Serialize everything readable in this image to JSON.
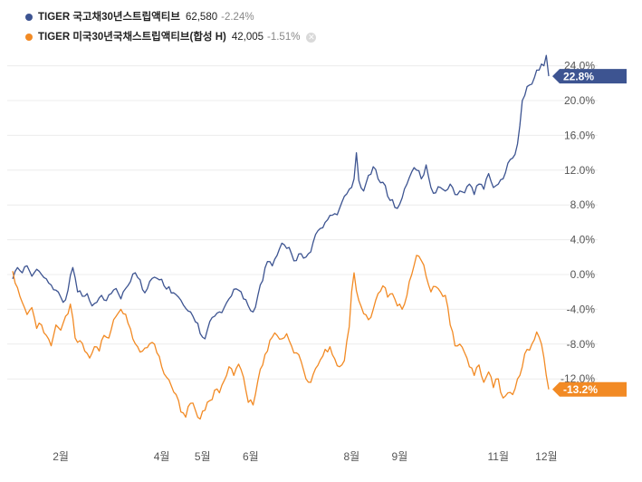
{
  "legend": {
    "items": [
      {
        "name": "TIGER 국고채30년스트립액티브",
        "price": "62,580",
        "change": "-2.24%",
        "color": "#3d5491"
      },
      {
        "name": "TIGER 미국30년국채스트립액티브(합성 H)",
        "price": "42,005",
        "change": "-1.51%",
        "color": "#f28a24",
        "close_icon": "close-icon"
      }
    ]
  },
  "chart_data": {
    "type": "line",
    "title": "",
    "xlabel": "",
    "ylabel": "",
    "x_ticks": [
      {
        "label": "2월",
        "idx": 20
      },
      {
        "label": "4월",
        "idx": 62
      },
      {
        "label": "5월",
        "idx": 79
      },
      {
        "label": "6월",
        "idx": 99
      },
      {
        "label": "8월",
        "idx": 141
      },
      {
        "label": "9월",
        "idx": 161
      },
      {
        "label": "11월",
        "idx": 202
      },
      {
        "label": "12월",
        "idx": 222
      }
    ],
    "y_ticks": [
      "24.0%",
      "20.0%",
      "16.0%",
      "12.0%",
      "8.0%",
      "4.0%",
      "0.0%",
      "-4.0%",
      "-8.0%",
      "-12.0%"
    ],
    "y_tick_values": [
      24,
      20,
      16,
      12,
      8,
      4,
      0,
      -4,
      -8,
      -12
    ],
    "ylim": [
      -17.5,
      26
    ],
    "grid": true,
    "series": [
      {
        "name": "TIGER 국고채30년스트립액티브",
        "color": "#3d5491",
        "last_label": "22.8%",
        "anchors": [
          [
            0,
            -0.5
          ],
          [
            2,
            0.8
          ],
          [
            4,
            0.2
          ],
          [
            6,
            1.0
          ],
          [
            8,
            -0.2
          ],
          [
            10,
            0.6
          ],
          [
            12,
            0.0
          ],
          [
            14,
            -0.5
          ],
          [
            16,
            -1.2
          ],
          [
            18,
            -1.8
          ],
          [
            20,
            -2.6
          ],
          [
            21,
            -3.2
          ],
          [
            23,
            -1.8
          ],
          [
            25,
            0.8
          ],
          [
            27,
            -2.0
          ],
          [
            29,
            -2.5
          ],
          [
            31,
            -2.2
          ],
          [
            33,
            -3.6
          ],
          [
            35,
            -3.2
          ],
          [
            37,
            -2.4
          ],
          [
            39,
            -3.0
          ],
          [
            41,
            -2.2
          ],
          [
            43,
            -1.6
          ],
          [
            45,
            -2.8
          ],
          [
            47,
            -1.6
          ],
          [
            49,
            -0.8
          ],
          [
            51,
            0.2
          ],
          [
            53,
            -0.6
          ],
          [
            55,
            -2.1
          ],
          [
            57,
            -0.8
          ],
          [
            59,
            -0.3
          ],
          [
            61,
            -0.6
          ],
          [
            63,
            -1.3
          ],
          [
            65,
            -1.4
          ],
          [
            67,
            -2.1
          ],
          [
            69,
            -2.6
          ],
          [
            71,
            -3.5
          ],
          [
            73,
            -4.2
          ],
          [
            75,
            -4.8
          ],
          [
            77,
            -5.6
          ],
          [
            78,
            -6.8
          ],
          [
            79,
            -7.2
          ],
          [
            80,
            -7.4
          ],
          [
            82,
            -5.4
          ],
          [
            84,
            -4.8
          ],
          [
            86,
            -4.3
          ],
          [
            88,
            -3.8
          ],
          [
            90,
            -2.8
          ],
          [
            92,
            -1.7
          ],
          [
            94,
            -1.8
          ],
          [
            96,
            -2.8
          ],
          [
            98,
            -3.6
          ],
          [
            100,
            -4.3
          ],
          [
            102,
            -2.4
          ],
          [
            104,
            -0.7
          ],
          [
            106,
            1.5
          ],
          [
            108,
            1.0
          ],
          [
            110,
            2.2
          ],
          [
            112,
            3.6
          ],
          [
            114,
            3.0
          ],
          [
            116,
            2.4
          ],
          [
            118,
            1.6
          ],
          [
            120,
            2.4
          ],
          [
            122,
            2.0
          ],
          [
            124,
            2.6
          ],
          [
            126,
            4.6
          ],
          [
            128,
            5.3
          ],
          [
            130,
            6.0
          ],
          [
            132,
            6.8
          ],
          [
            134,
            7.0
          ],
          [
            136,
            7.6
          ],
          [
            138,
            9.0
          ],
          [
            140,
            9.8
          ],
          [
            142,
            11.0
          ],
          [
            143,
            14.0
          ],
          [
            144,
            10.8
          ],
          [
            146,
            9.6
          ],
          [
            148,
            11.4
          ],
          [
            150,
            12.4
          ],
          [
            152,
            11.0
          ],
          [
            154,
            10.6
          ],
          [
            156,
            9.0
          ],
          [
            158,
            8.6
          ],
          [
            160,
            7.6
          ],
          [
            162,
            8.8
          ],
          [
            164,
            10.4
          ],
          [
            166,
            11.8
          ],
          [
            168,
            12.0
          ],
          [
            170,
            11.0
          ],
          [
            172,
            12.6
          ],
          [
            174,
            10.0
          ],
          [
            176,
            9.4
          ],
          [
            178,
            10.0
          ],
          [
            180,
            9.6
          ],
          [
            182,
            10.4
          ],
          [
            184,
            9.2
          ],
          [
            186,
            9.6
          ],
          [
            188,
            9.4
          ],
          [
            190,
            10.4
          ],
          [
            192,
            9.2
          ],
          [
            194,
            10.4
          ],
          [
            196,
            9.8
          ],
          [
            198,
            11.6
          ],
          [
            200,
            10.0
          ],
          [
            202,
            10.4
          ],
          [
            204,
            11.0
          ],
          [
            206,
            12.8
          ],
          [
            208,
            13.4
          ],
          [
            210,
            15.0
          ],
          [
            212,
            20.0
          ],
          [
            214,
            21.6
          ],
          [
            216,
            21.9
          ],
          [
            218,
            23.5
          ],
          [
            220,
            24.2
          ],
          [
            221,
            24.0
          ],
          [
            222,
            25.2
          ],
          [
            223,
            22.8
          ]
        ]
      },
      {
        "name": "TIGER 미국30년국채스트립액티브(합성 H)",
        "color": "#f28a24",
        "last_label": "-13.2%",
        "anchors": [
          [
            0,
            0.4
          ],
          [
            2,
            -1.5
          ],
          [
            4,
            -3.2
          ],
          [
            6,
            -4.6
          ],
          [
            8,
            -3.8
          ],
          [
            10,
            -6.2
          ],
          [
            12,
            -5.8
          ],
          [
            14,
            -7.0
          ],
          [
            16,
            -8.2
          ],
          [
            18,
            -5.8
          ],
          [
            20,
            -6.4
          ],
          [
            22,
            -4.8
          ],
          [
            24,
            -3.4
          ],
          [
            26,
            -7.3
          ],
          [
            28,
            -7.6
          ],
          [
            30,
            -8.8
          ],
          [
            32,
            -9.6
          ],
          [
            34,
            -8.3
          ],
          [
            36,
            -8.8
          ],
          [
            38,
            -7.0
          ],
          [
            40,
            -7.3
          ],
          [
            42,
            -5.2
          ],
          [
            44,
            -4.4
          ],
          [
            46,
            -4.5
          ],
          [
            48,
            -5.6
          ],
          [
            50,
            -7.4
          ],
          [
            52,
            -8.3
          ],
          [
            54,
            -8.8
          ],
          [
            56,
            -8.4
          ],
          [
            58,
            -7.8
          ],
          [
            60,
            -9.0
          ],
          [
            62,
            -10.6
          ],
          [
            64,
            -11.8
          ],
          [
            66,
            -12.8
          ],
          [
            68,
            -13.8
          ],
          [
            70,
            -15.8
          ],
          [
            72,
            -16.4
          ],
          [
            74,
            -14.8
          ],
          [
            76,
            -15.6
          ],
          [
            78,
            -16.6
          ],
          [
            80,
            -15.6
          ],
          [
            82,
            -14.5
          ],
          [
            84,
            -13.3
          ],
          [
            86,
            -13.6
          ],
          [
            88,
            -12.2
          ],
          [
            90,
            -10.6
          ],
          [
            92,
            -11.6
          ],
          [
            94,
            -10.3
          ],
          [
            96,
            -11.8
          ],
          [
            98,
            -14.7
          ],
          [
            100,
            -15.0
          ],
          [
            102,
            -12.2
          ],
          [
            104,
            -10.4
          ],
          [
            106,
            -8.8
          ],
          [
            108,
            -7.2
          ],
          [
            110,
            -7.0
          ],
          [
            112,
            -7.4
          ],
          [
            114,
            -6.8
          ],
          [
            116,
            -8.2
          ],
          [
            118,
            -9.0
          ],
          [
            120,
            -10.0
          ],
          [
            122,
            -12.0
          ],
          [
            124,
            -12.4
          ],
          [
            126,
            -10.8
          ],
          [
            128,
            -9.8
          ],
          [
            130,
            -8.6
          ],
          [
            132,
            -8.3
          ],
          [
            134,
            -9.7
          ],
          [
            136,
            -10.6
          ],
          [
            138,
            -9.9
          ],
          [
            140,
            -6.0
          ],
          [
            141,
            -2.0
          ],
          [
            142,
            0.2
          ],
          [
            144,
            -3.0
          ],
          [
            146,
            -4.5
          ],
          [
            148,
            -5.2
          ],
          [
            150,
            -4.0
          ],
          [
            152,
            -2.2
          ],
          [
            154,
            -1.3
          ],
          [
            156,
            -2.6
          ],
          [
            158,
            -2.2
          ],
          [
            160,
            -3.6
          ],
          [
            162,
            -4.0
          ],
          [
            164,
            -2.4
          ],
          [
            166,
            0.0
          ],
          [
            168,
            2.2
          ],
          [
            170,
            1.6
          ],
          [
            172,
            -0.2
          ],
          [
            174,
            -2.0
          ],
          [
            176,
            -1.4
          ],
          [
            178,
            -2.0
          ],
          [
            180,
            -2.4
          ],
          [
            182,
            -5.8
          ],
          [
            184,
            -8.2
          ],
          [
            186,
            -8.0
          ],
          [
            188,
            -9.0
          ],
          [
            190,
            -10.6
          ],
          [
            192,
            -11.6
          ],
          [
            194,
            -10.4
          ],
          [
            196,
            -12.4
          ],
          [
            198,
            -11.2
          ],
          [
            200,
            -13.0
          ],
          [
            202,
            -12.0
          ],
          [
            204,
            -14.2
          ],
          [
            206,
            -13.6
          ],
          [
            208,
            -13.8
          ],
          [
            210,
            -12.0
          ],
          [
            212,
            -10.6
          ],
          [
            214,
            -8.6
          ],
          [
            216,
            -8.0
          ],
          [
            218,
            -6.6
          ],
          [
            220,
            -8.0
          ],
          [
            222,
            -11.6
          ],
          [
            223,
            -13.2
          ]
        ]
      }
    ]
  }
}
